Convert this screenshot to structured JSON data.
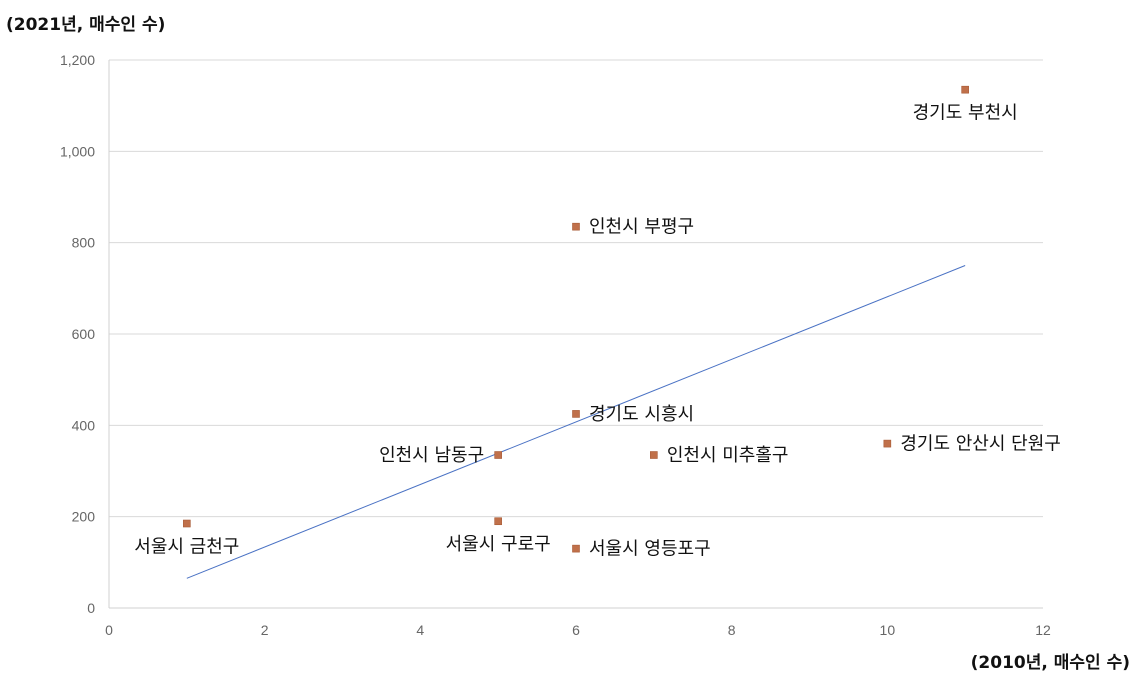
{
  "chart_data": {
    "type": "scatter",
    "xlabel": "(2010년, 매수인 수)",
    "ylabel": "(2021년, 매수인 수)",
    "xlim": [
      0,
      12
    ],
    "ylim": [
      0,
      1200
    ],
    "x_ticks": [
      0,
      2,
      4,
      6,
      8,
      10,
      12
    ],
    "y_ticks": [
      0,
      200,
      400,
      600,
      800,
      1000,
      1200
    ],
    "y_tick_labels": [
      "0",
      "200",
      "400",
      "600",
      "800",
      "1,000",
      "1,200"
    ],
    "grid": "horizontal",
    "points": [
      {
        "label": "서울시 금천구",
        "x": 1,
        "y": 185,
        "label_pos": "below"
      },
      {
        "label": "서울시 구로구",
        "x": 5,
        "y": 190,
        "label_pos": "below"
      },
      {
        "label": "서울시 영등포구",
        "x": 6,
        "y": 130,
        "label_pos": "right"
      },
      {
        "label": "인천시 남동구",
        "x": 5,
        "y": 335,
        "label_pos": "left"
      },
      {
        "label": "경기도 시흥시",
        "x": 6,
        "y": 425,
        "label_pos": "right"
      },
      {
        "label": "인천시 미추홀구",
        "x": 7,
        "y": 335,
        "label_pos": "right"
      },
      {
        "label": "인천시 부평구",
        "x": 6,
        "y": 835,
        "label_pos": "right"
      },
      {
        "label": "경기도 안산시 단원구",
        "x": 10,
        "y": 360,
        "label_pos": "right"
      },
      {
        "label": "경기도 부천시",
        "x": 11,
        "y": 1135,
        "label_pos": "below"
      }
    ],
    "trendline": {
      "x": [
        1,
        11
      ],
      "y": [
        65,
        750
      ]
    },
    "colors": {
      "point": "#c0704a",
      "trendline": "#4a72c4",
      "grid": "#d9d9d9"
    }
  }
}
